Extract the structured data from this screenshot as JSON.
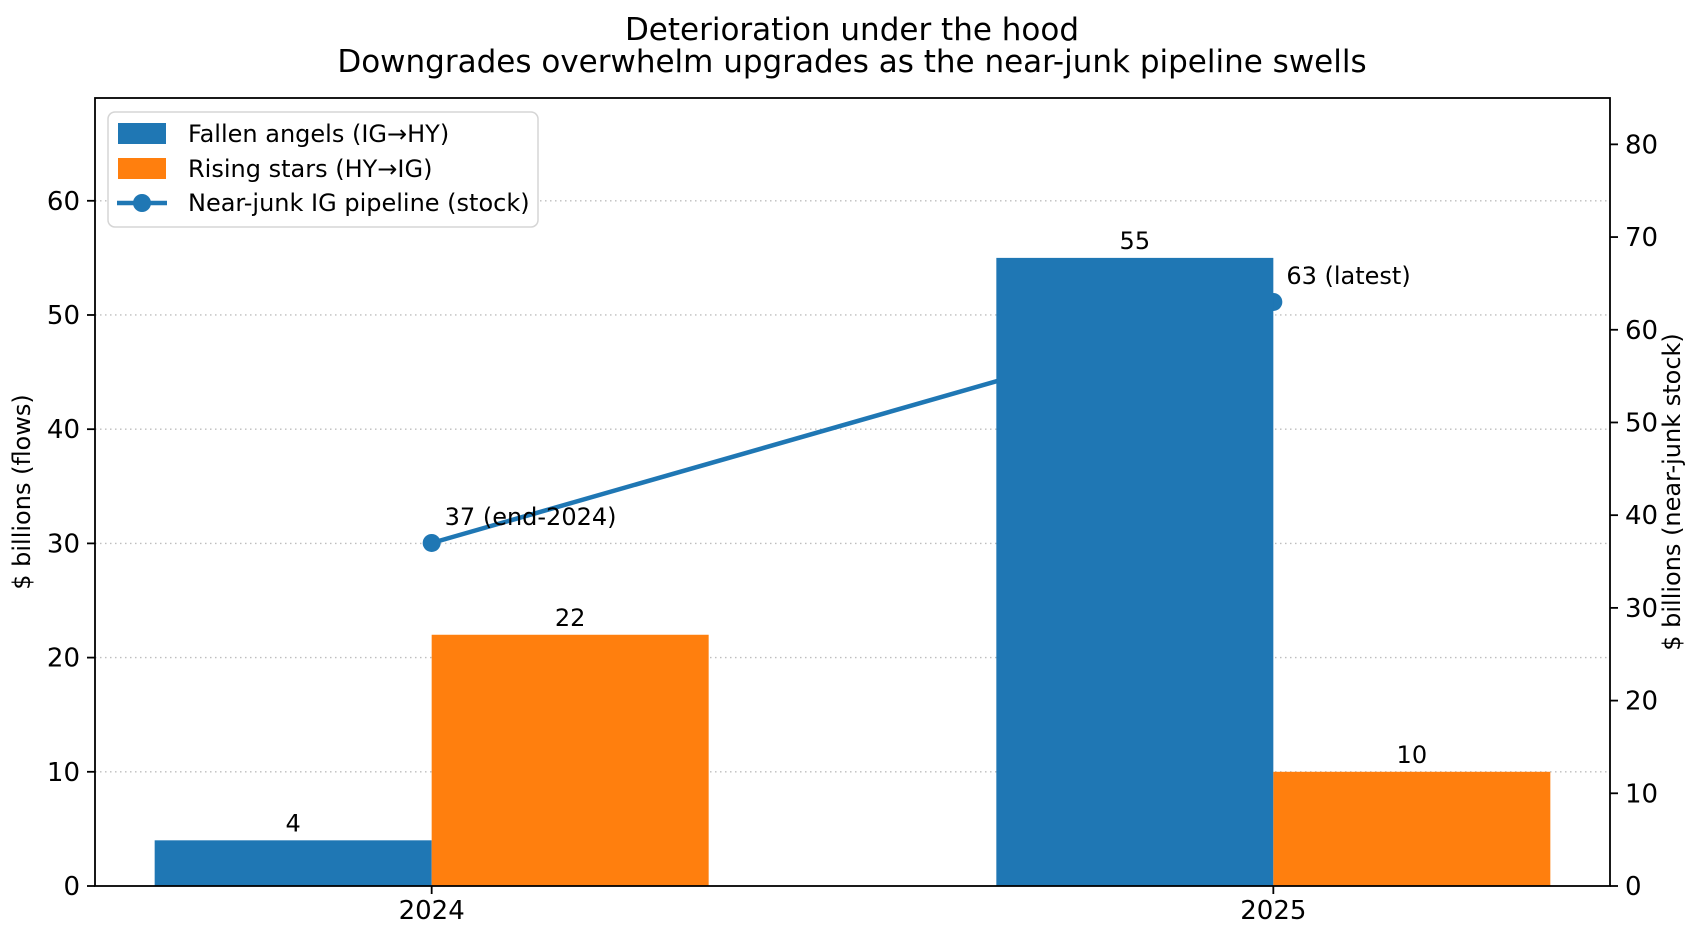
{
  "title": {
    "line1": "Deterioration under the hood",
    "line2": "Downgrades overwhelm upgrades as the near-junk pipeline swells"
  },
  "chart_data": {
    "type": "bar+line dual-axis",
    "categories": [
      "2024",
      "2025"
    ],
    "series": [
      {
        "name": "Fallen angels (IG→HY)",
        "type": "bar",
        "axis": "left",
        "color": "#1f77b4",
        "values": [
          4,
          55
        ],
        "labels": [
          "4",
          "55"
        ]
      },
      {
        "name": "Rising stars (HY→IG)",
        "type": "bar",
        "axis": "left",
        "color": "#ff7f0e",
        "values": [
          22,
          10
        ],
        "labels": [
          "22",
          "10"
        ]
      },
      {
        "name": "Near-junk IG pipeline (stock)",
        "type": "line",
        "axis": "right",
        "color": "#1f77b4",
        "values": [
          37,
          63
        ],
        "labels": [
          "37 (end-2024)",
          "63 (latest)"
        ]
      }
    ],
    "left_axis": {
      "label": "$ billions (flows)",
      "ticks": [
        0,
        10,
        20,
        30,
        40,
        50,
        60
      ],
      "lim": [
        0,
        69
      ]
    },
    "right_axis": {
      "label": "$ billions (near-junk stock)",
      "ticks": [
        0,
        10,
        20,
        30,
        40,
        50,
        60,
        70,
        80
      ],
      "lim": [
        0,
        85
      ]
    },
    "grid": {
      "show": true,
      "style": "dotted",
      "color": "#bdbdbd",
      "source": "left-axis ticks"
    },
    "legend": {
      "position": "upper left"
    }
  }
}
